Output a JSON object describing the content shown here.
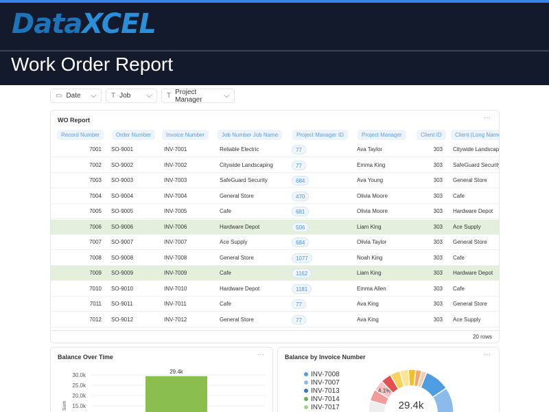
{
  "brand": {
    "logo_a": "Data",
    "logo_b": "XCEL",
    "accent": "#3b82e6",
    "header_bg": "#131a2c"
  },
  "page_title": "Work Order Report",
  "filters": [
    {
      "label": "Date",
      "icon": "calendar-icon"
    },
    {
      "label": "Job",
      "icon": "text-icon"
    },
    {
      "label": "Project Manager",
      "icon": "text-icon"
    }
  ],
  "table": {
    "title": "WO Report",
    "menu": "···",
    "row_count": "20 rows",
    "columns": [
      "Record Number",
      "Order Number",
      "Invoice Number",
      "Job Number Job Name",
      "Project Manager ID",
      "Project Manager",
      "Client ID",
      "Client (Long Name)"
    ],
    "rows": [
      [
        "7001",
        "SO-9001",
        "INV-7001",
        "Reliable Electric",
        "77",
        "Ava Taylor",
        "303",
        "Citywide Landscaping"
      ],
      [
        "7002",
        "SO-9002",
        "INV-7002",
        "Citywide Landscaping",
        "77",
        "Emma King",
        "303",
        "SafeGuard Security"
      ],
      [
        "7003",
        "SO-9003",
        "INV-7003",
        "SafeGuard Security",
        "684",
        "Ava Young",
        "303",
        "General Store"
      ],
      [
        "7004",
        "SO-9004",
        "INV-7004",
        "General Store",
        "470",
        "Olivia Moore",
        "303",
        "Cafe"
      ],
      [
        "7005",
        "SO-9005",
        "INV-7005",
        "Cafe",
        "681",
        "Olivia Moore",
        "303",
        "Hardware Depot"
      ],
      [
        "7006",
        "SO-9006",
        "INV-7006",
        "Hardware Depot",
        "506",
        "Liam King",
        "303",
        "Ace Supply"
      ],
      [
        "7007",
        "SO-9007",
        "INV-7007",
        "Ace Supply",
        "684",
        "Olivia Taylor",
        "303",
        "General Store"
      ],
      [
        "7008",
        "SO-9008",
        "INV-7008",
        "General Store",
        "1077",
        "Noah King",
        "303",
        "Cafe"
      ],
      [
        "7009",
        "SO-9009",
        "INV-7009",
        "Cafe",
        "1162",
        "Liam King",
        "303",
        "Hardware Depot"
      ],
      [
        "7010",
        "SO-9010",
        "INV-7010",
        "Hardware Depot",
        "1181",
        "Emma Allen",
        "303",
        "Cafe"
      ],
      [
        "7011",
        "SO-9011",
        "INV-7011",
        "Cafe",
        "77",
        "Ava King",
        "303",
        "General Store"
      ],
      [
        "7012",
        "SO-9012",
        "INV-7012",
        "General Store",
        "77",
        "Ava King",
        "303",
        "Ace Supply"
      ]
    ],
    "highlighted_rows": [
      "7006",
      "7009"
    ],
    "highlight_color": "#e4f0dc"
  },
  "chart_data": [
    {
      "type": "bar",
      "title": "Balance Over Time",
      "menu": "···",
      "ylabel": "Sum",
      "yticks": [
        "15.0k",
        "20.0k",
        "25.0k",
        "30.0k"
      ],
      "ylim": [
        15000,
        30000
      ],
      "values": [
        29400
      ],
      "data_labels": [
        "29.4k"
      ],
      "color": "#8bbf4d",
      "grid": true
    },
    {
      "type": "pie",
      "title": "Balance by Invoice Number",
      "menu": "···",
      "center_label": "29.4k",
      "legend": [
        {
          "name": "INV-7008",
          "color": "#4d9de0"
        },
        {
          "name": "INV-7007",
          "color": "#8abbea"
        },
        {
          "name": "INV-7013",
          "color": "#2a78d0"
        },
        {
          "name": "INV-7014",
          "color": "#6ab04c"
        },
        {
          "name": "INV-7017",
          "color": "#a6d08a"
        }
      ],
      "slices": [
        {
          "name": "INV-7008",
          "pct": 15.5,
          "color": "#4d9de0"
        },
        {
          "name": "INV-7007",
          "pct": 10.5,
          "color": "#8abbea"
        },
        {
          "name": "INV-7013",
          "pct": 10,
          "color": "#2a78d0"
        },
        {
          "name": "INV-7014",
          "pct": 9,
          "color": "#6ab04c"
        },
        {
          "name": "INV-7017",
          "pct": 8,
          "color": "#a6d08a"
        },
        {
          "pct": 26.3,
          "color": "#eeeeee"
        },
        {
          "pct": 4.5,
          "color": "#f19b9b"
        },
        {
          "pct": 4.1,
          "color": "#f6c2c4",
          "label": "4.1%"
        },
        {
          "pct": 4,
          "color": "#e35050"
        },
        {
          "pct": 3.8,
          "color": "#f7d25c"
        },
        {
          "pct": 3.3,
          "color": "#fbe39a"
        },
        {
          "pct": 2.8,
          "color": "#f4c125"
        },
        {
          "pct": 2.2,
          "color": "#f2a86c"
        },
        {
          "pct": 2.0,
          "color": "#f8ccaa"
        }
      ]
    }
  ]
}
